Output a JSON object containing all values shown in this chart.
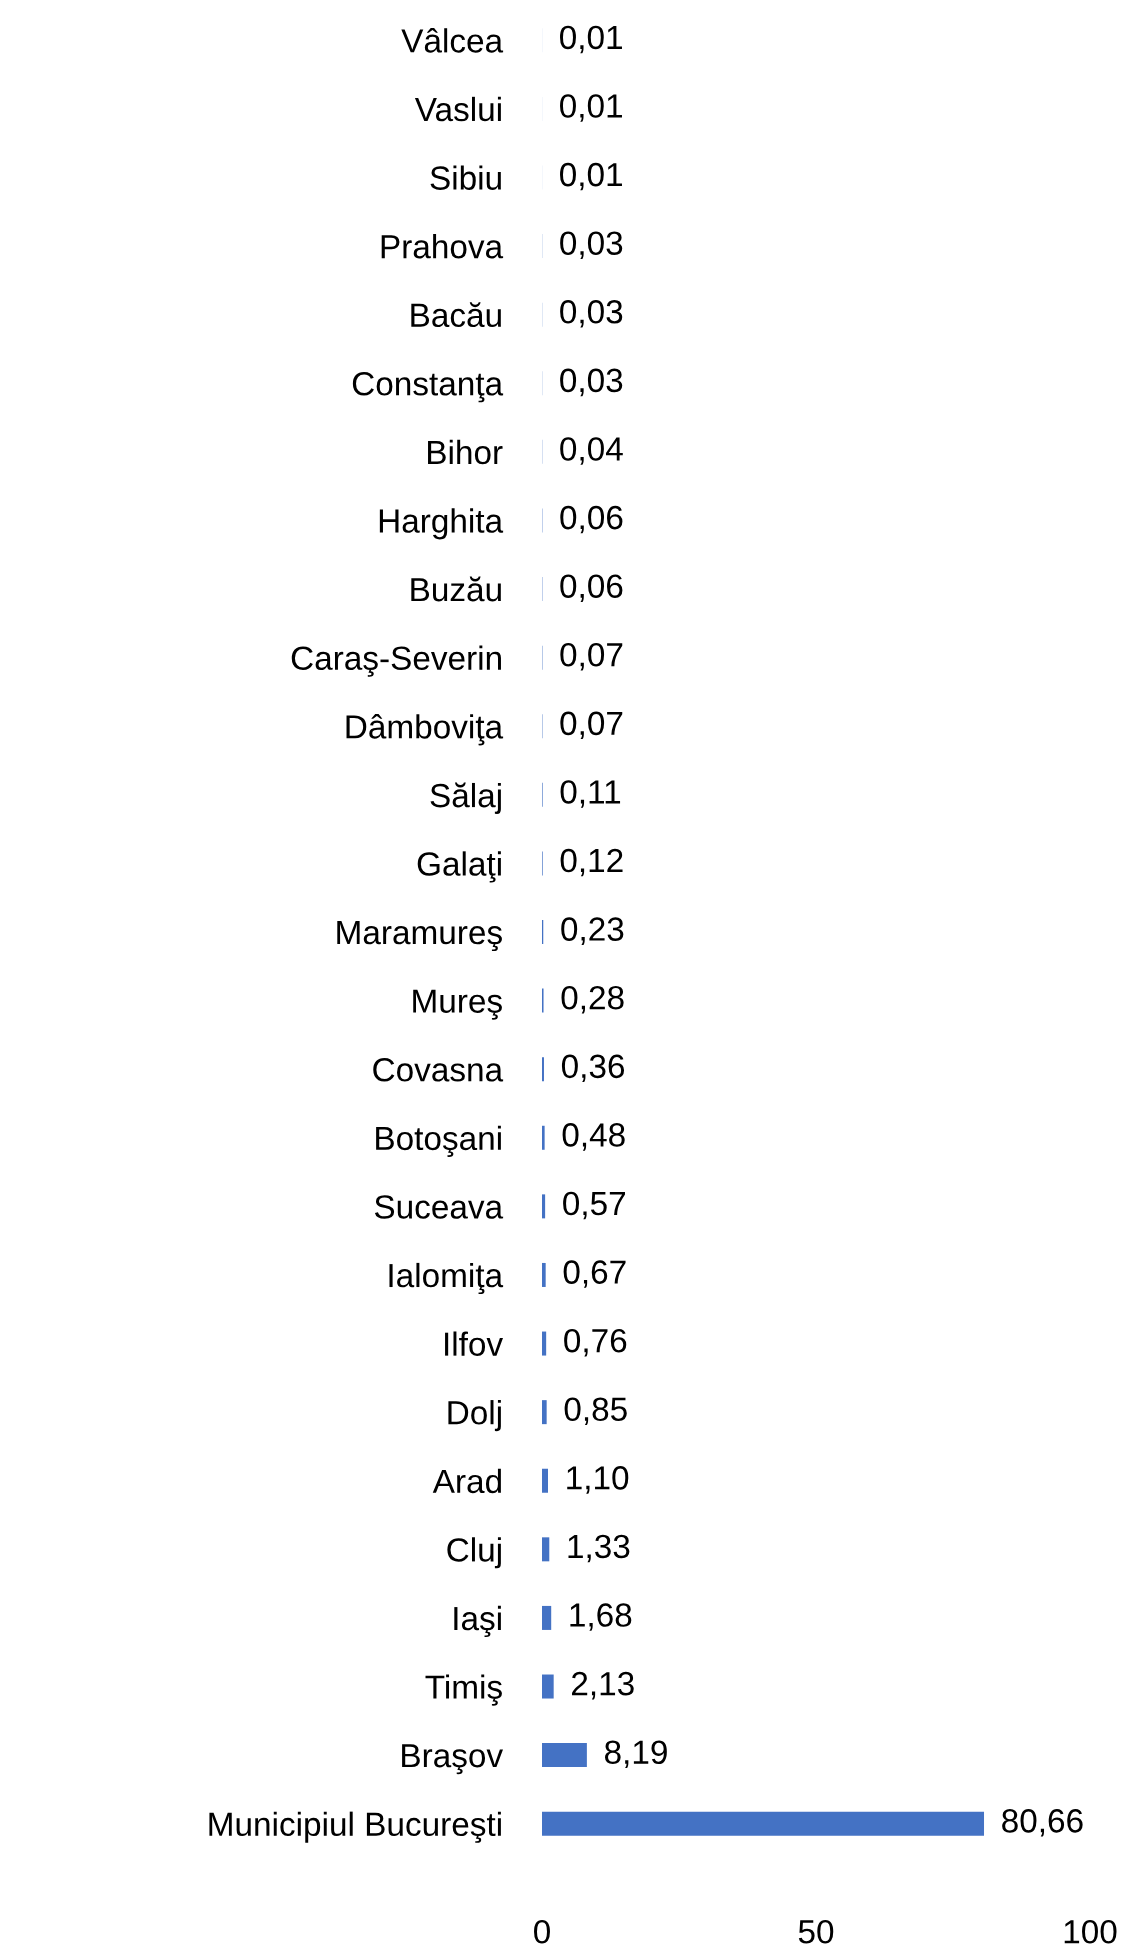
{
  "chart_data": {
    "type": "bar",
    "orientation": "horizontal",
    "categories": [
      "Vâlcea",
      "Vaslui",
      "Sibiu",
      "Prahova",
      "Bacău",
      "Constanţa",
      "Bihor",
      "Harghita",
      "Buzău",
      "Caraş-Severin",
      "Dâmboviţa",
      "Sălaj",
      "Galaţi",
      "Maramureş",
      "Mureş",
      "Covasna",
      "Botoşani",
      "Suceava",
      "Ialomiţa",
      "Ilfov",
      "Dolj",
      "Arad",
      "Cluj",
      "Iaşi",
      "Timiş",
      "Braşov",
      "Municipiul Bucureşti"
    ],
    "values": [
      0.01,
      0.01,
      0.01,
      0.03,
      0.03,
      0.03,
      0.04,
      0.06,
      0.06,
      0.07,
      0.07,
      0.11,
      0.12,
      0.23,
      0.28,
      0.36,
      0.48,
      0.57,
      0.67,
      0.76,
      0.85,
      1.1,
      1.33,
      1.68,
      2.13,
      8.19,
      80.66
    ],
    "value_labels": [
      "0,01",
      "0,01",
      "0,01",
      "0,03",
      "0,03",
      "0,03",
      "0,04",
      "0,06",
      "0,06",
      "0,07",
      "0,07",
      "0,11",
      "0,12",
      "0,23",
      "0,28",
      "0,36",
      "0,48",
      "0,57",
      "0,67",
      "0,76",
      "0,85",
      "1,10",
      "1,33",
      "1,68",
      "2,13",
      "8,19",
      "80,66"
    ],
    "color": "#4472c4",
    "xlim": [
      0,
      100
    ],
    "xticks": [
      0,
      50,
      100
    ],
    "grid": false
  }
}
